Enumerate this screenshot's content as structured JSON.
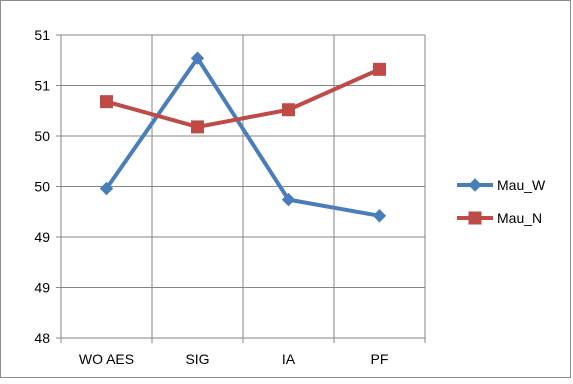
{
  "chart_data": {
    "type": "line",
    "categories": [
      "WO AES",
      "SIG",
      "IA",
      "PF"
    ],
    "y_tick_labels": [
      "48",
      "49",
      "49",
      "50",
      "50",
      "51",
      "51"
    ],
    "ylim": [
      48,
      51
    ],
    "grid": true,
    "legend_position": "right",
    "series": [
      {
        "name": "Mau_W",
        "values": [
          49.48,
          50.77,
          49.37,
          49.21
        ],
        "color": "#4a7ebb",
        "marker": "diamond"
      },
      {
        "name": "Mau_N",
        "values": [
          50.34,
          50.09,
          50.26,
          50.66
        ],
        "color": "#be4b48",
        "marker": "square"
      }
    ]
  }
}
